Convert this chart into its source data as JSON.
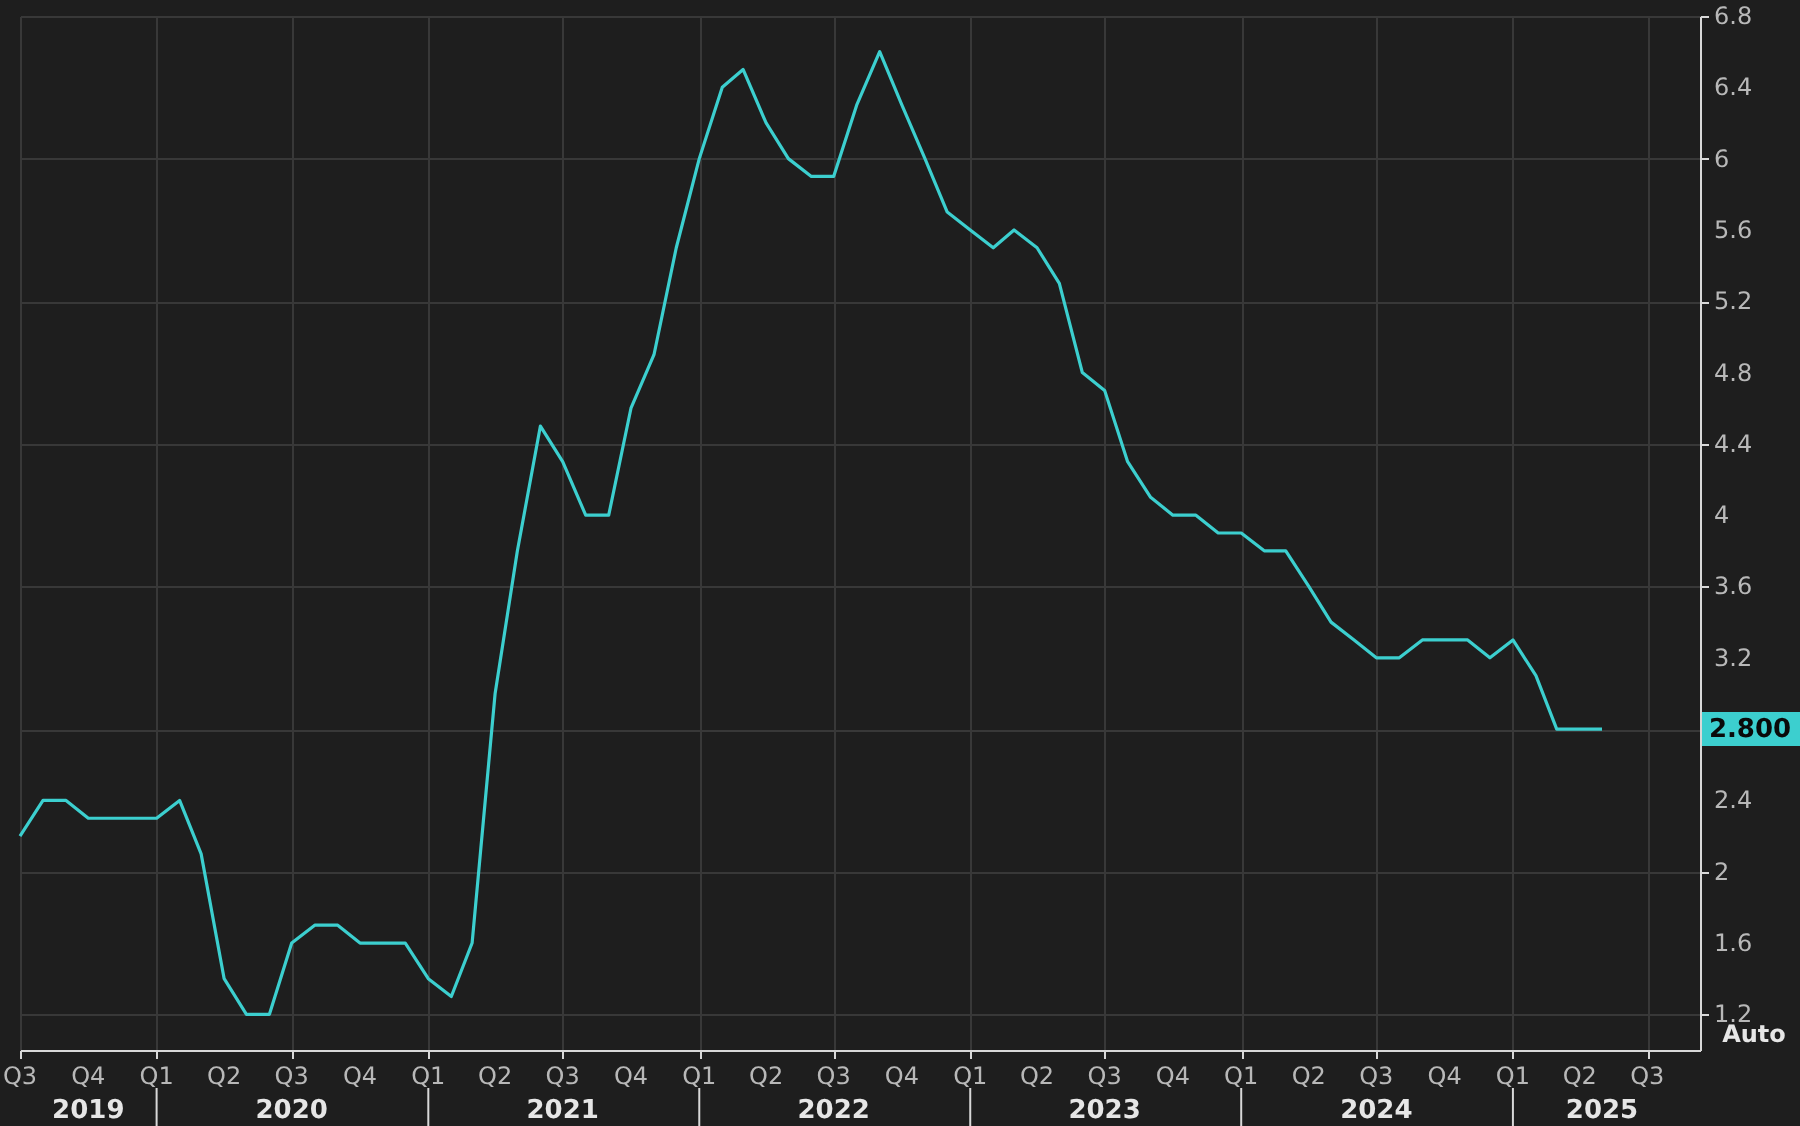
{
  "chart_data": {
    "type": "line",
    "x": [
      "2019-07",
      "2019-08",
      "2019-09",
      "2019-10",
      "2019-11",
      "2019-12",
      "2020-01",
      "2020-02",
      "2020-03",
      "2020-04",
      "2020-05",
      "2020-06",
      "2020-07",
      "2020-08",
      "2020-09",
      "2020-10",
      "2020-11",
      "2020-12",
      "2021-01",
      "2021-02",
      "2021-03",
      "2021-04",
      "2021-05",
      "2021-06",
      "2021-07",
      "2021-08",
      "2021-09",
      "2021-10",
      "2021-11",
      "2021-12",
      "2022-01",
      "2022-02",
      "2022-03",
      "2022-04",
      "2022-05",
      "2022-06",
      "2022-07",
      "2022-08",
      "2022-09",
      "2022-10",
      "2022-11",
      "2022-12",
      "2023-01",
      "2023-02",
      "2023-03",
      "2023-04",
      "2023-05",
      "2023-06",
      "2023-07",
      "2023-08",
      "2023-09",
      "2023-10",
      "2023-11",
      "2023-12",
      "2024-01",
      "2024-02",
      "2024-03",
      "2024-04",
      "2024-05",
      "2024-06",
      "2024-07",
      "2024-08",
      "2024-09",
      "2024-10",
      "2024-11",
      "2024-12",
      "2025-01",
      "2025-02",
      "2025-03",
      "2025-04",
      "2025-05"
    ],
    "series": [
      {
        "color": "#3ccfcf",
        "values": [
          2.2,
          2.4,
          2.4,
          2.3,
          2.3,
          2.3,
          2.3,
          2.4,
          2.1,
          1.4,
          1.2,
          1.2,
          1.6,
          1.7,
          1.7,
          1.6,
          1.6,
          1.6,
          1.4,
          1.3,
          1.6,
          3.0,
          3.8,
          4.5,
          4.3,
          4.0,
          4.0,
          4.6,
          4.9,
          5.5,
          6.0,
          6.4,
          6.5,
          6.2,
          6.0,
          5.9,
          5.9,
          6.3,
          6.6,
          6.3,
          6.0,
          5.7,
          5.6,
          5.5,
          5.6,
          5.5,
          5.3,
          4.8,
          4.7,
          4.3,
          4.1,
          4.0,
          4.0,
          3.9,
          3.9,
          3.8,
          3.8,
          3.6,
          3.4,
          3.3,
          3.2,
          3.2,
          3.3,
          3.3,
          3.3,
          3.2,
          3.3,
          3.1,
          2.8,
          2.8,
          2.8
        ]
      }
    ],
    "xlim": [
      "2019-07-01",
      "2025-09-10"
    ],
    "xticks": [
      {
        "value": "2019-07-01",
        "label": "Q3"
      },
      {
        "value": "2019-10-01",
        "label": "Q4"
      },
      {
        "value": "2020-01-01",
        "label": "Q1"
      },
      {
        "value": "2020-04-01",
        "label": "Q2"
      },
      {
        "value": "2020-07-01",
        "label": "Q3"
      },
      {
        "value": "2020-10-01",
        "label": "Q4"
      },
      {
        "value": "2021-01-01",
        "label": "Q1"
      },
      {
        "value": "2021-04-01",
        "label": "Q2"
      },
      {
        "value": "2021-07-01",
        "label": "Q3"
      },
      {
        "value": "2021-10-01",
        "label": "Q4"
      },
      {
        "value": "2022-01-01",
        "label": "Q1"
      },
      {
        "value": "2022-04-01",
        "label": "Q2"
      },
      {
        "value": "2022-07-01",
        "label": "Q3"
      },
      {
        "value": "2022-10-01",
        "label": "Q4"
      },
      {
        "value": "2023-01-01",
        "label": "Q1"
      },
      {
        "value": "2023-04-01",
        "label": "Q2"
      },
      {
        "value": "2023-07-01",
        "label": "Q3"
      },
      {
        "value": "2023-10-01",
        "label": "Q4"
      },
      {
        "value": "2024-01-01",
        "label": "Q1"
      },
      {
        "value": "2024-04-01",
        "label": "Q2"
      },
      {
        "value": "2024-07-01",
        "label": "Q3"
      },
      {
        "value": "2024-10-01",
        "label": "Q4"
      },
      {
        "value": "2025-01-01",
        "label": "Q1"
      },
      {
        "value": "2025-04-01",
        "label": "Q2"
      },
      {
        "value": "2025-07-01",
        "label": "Q3"
      }
    ],
    "x2lim": [
      "2019-07-01",
      "2025-09-10"
    ],
    "x2ticks": [
      {
        "value": "2019-10-01",
        "label": "2019"
      },
      {
        "value": "2020-01-01",
        "label": null
      },
      {
        "value": "2020-07-01",
        "label": "2020"
      },
      {
        "value": "2021-01-01",
        "label": null
      },
      {
        "value": "2021-07-01",
        "label": "2021"
      },
      {
        "value": "2022-01-01",
        "label": null
      },
      {
        "value": "2022-07-01",
        "label": "2022"
      },
      {
        "value": "2023-01-01",
        "label": null
      },
      {
        "value": "2023-07-01",
        "label": "2023"
      },
      {
        "value": "2024-01-01",
        "label": null
      },
      {
        "value": "2024-07-01",
        "label": "2024"
      },
      {
        "value": "2025-01-01",
        "label": null
      },
      {
        "value": "2025-05-01",
        "label": "2025"
      }
    ],
    "ylim": [
      1.0,
      6.8
    ],
    "yticks": [
      1.2,
      1.6,
      2,
      2.4,
      {
        "value": 2.8,
        "label": null
      },
      3.2,
      3.6,
      4,
      4.4,
      4.8,
      5.2,
      5.6,
      6,
      6.4,
      6.8
    ],
    "grid": true,
    "annotations": [
      "2.800",
      "Auto"
    ]
  }
}
